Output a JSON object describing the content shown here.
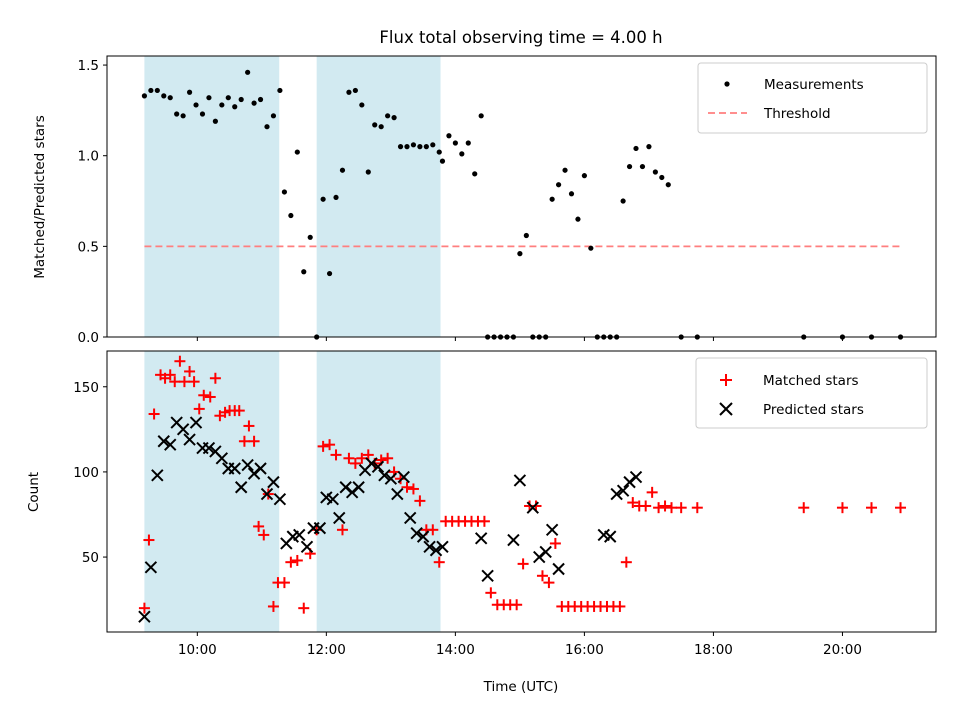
{
  "chart_data": {
    "type": "scatter",
    "title": "Flux total observing time = 4.00 h",
    "xlabel": "Time (UTC)",
    "x_unit": "hours UTC",
    "xlim": [
      8.6,
      21.45
    ],
    "xticks": [
      10,
      12,
      14,
      16,
      18,
      20
    ],
    "xtick_labels": [
      "10:00",
      "12:00",
      "14:00",
      "16:00",
      "18:00",
      "20:00"
    ],
    "shaded_windows": [
      [
        9.18,
        11.27
      ],
      [
        11.85,
        13.77
      ]
    ],
    "shade_color": "#add8e6",
    "panels": [
      {
        "id": "ratio",
        "ylabel": "Matched/Predicted stars",
        "ylim": [
          0,
          1.55
        ],
        "yticks": [
          0.0,
          0.5,
          1.0,
          1.5
        ],
        "ytick_labels": [
          "0.0",
          "0.5",
          "1.0",
          "1.5"
        ],
        "legend_position": "upper right",
        "threshold": {
          "name": "Threshold",
          "value": 0.5,
          "x_range": [
            9.18,
            20.9
          ],
          "color": "#ff7f7f"
        },
        "series": [
          {
            "name": "Measurements",
            "marker": "dot",
            "color": "#000000",
            "x": [
              9.18,
              9.28,
              9.38,
              9.48,
              9.58,
              9.68,
              9.78,
              9.88,
              9.98,
              10.08,
              10.18,
              10.28,
              10.38,
              10.48,
              10.58,
              10.68,
              10.78,
              10.88,
              10.98,
              11.08,
              11.18,
              11.28,
              11.35,
              11.45,
              11.55,
              11.65,
              11.75,
              11.85,
              11.95,
              12.05,
              12.15,
              12.25,
              12.35,
              12.45,
              12.55,
              12.65,
              12.75,
              12.85,
              12.95,
              13.05,
              13.15,
              13.25,
              13.35,
              13.45,
              13.55,
              13.65,
              13.75,
              13.8,
              13.9,
              14.0,
              14.1,
              14.2,
              14.3,
              14.4,
              14.5,
              14.6,
              14.7,
              14.8,
              14.9,
              15.0,
              15.1,
              15.2,
              15.3,
              15.4,
              15.5,
              15.6,
              15.7,
              15.8,
              15.9,
              16.0,
              16.1,
              16.2,
              16.3,
              16.4,
              16.5,
              16.6,
              16.7,
              16.8,
              16.9,
              17.0,
              17.1,
              17.2,
              17.3,
              17.5,
              17.75,
              19.4,
              20.0,
              20.45,
              20.9
            ],
            "y": [
              1.33,
              1.36,
              1.36,
              1.33,
              1.32,
              1.23,
              1.22,
              1.35,
              1.28,
              1.23,
              1.32,
              1.19,
              1.28,
              1.32,
              1.27,
              1.31,
              1.46,
              1.29,
              1.31,
              1.16,
              1.22,
              1.36,
              0.8,
              0.67,
              1.02,
              0.36,
              0.55,
              0.0,
              0.76,
              0.35,
              0.77,
              0.92,
              1.35,
              1.36,
              1.28,
              0.91,
              1.17,
              1.16,
              1.22,
              1.21,
              1.05,
              1.05,
              1.06,
              1.05,
              1.05,
              1.06,
              1.02,
              0.97,
              1.11,
              1.07,
              1.01,
              1.07,
              0.9,
              1.22,
              0.0,
              0.0,
              0.0,
              0.0,
              0.0,
              0.46,
              0.56,
              0.0,
              0.0,
              0.0,
              0.76,
              0.84,
              0.92,
              0.79,
              0.65,
              0.89,
              0.49,
              0.0,
              0.0,
              0.0,
              0.0,
              0.75,
              0.94,
              1.04,
              0.94,
              1.05,
              0.91,
              0.88,
              0.84,
              0.0,
              0.0,
              0.0,
              0.0,
              0.0,
              0.0
            ]
          }
        ]
      },
      {
        "id": "counts",
        "ylabel": "Count",
        "ylim": [
          6,
          171
        ],
        "yticks": [
          50,
          100,
          150
        ],
        "ytick_labels": [
          "50",
          "100",
          "150"
        ],
        "legend_position": "upper right",
        "series": [
          {
            "name": "Matched stars",
            "marker": "plus",
            "color": "#ff0000",
            "x": [
              9.18,
              9.25,
              9.33,
              9.43,
              9.5,
              9.58,
              9.65,
              9.73,
              9.8,
              9.88,
              9.95,
              10.03,
              10.1,
              10.2,
              10.28,
              10.35,
              10.43,
              10.5,
              10.58,
              10.65,
              10.73,
              10.8,
              10.88,
              10.95,
              11.03,
              11.1,
              11.18,
              11.25,
              11.35,
              11.45,
              11.55,
              11.65,
              11.75,
              11.85,
              11.95,
              12.05,
              12.15,
              12.25,
              12.35,
              12.45,
              12.55,
              12.65,
              12.75,
              12.85,
              12.95,
              13.05,
              13.15,
              13.25,
              13.35,
              13.45,
              13.55,
              13.65,
              13.75,
              13.85,
              13.95,
              14.05,
              14.15,
              14.25,
              14.35,
              14.45,
              14.55,
              14.65,
              14.75,
              14.85,
              14.95,
              15.05,
              15.15,
              15.25,
              15.35,
              15.45,
              15.55,
              15.65,
              15.75,
              15.85,
              15.95,
              16.05,
              16.15,
              16.25,
              16.35,
              16.45,
              16.55,
              16.65,
              16.75,
              16.85,
              16.95,
              17.05,
              17.15,
              17.25,
              17.35,
              17.5,
              17.75,
              19.4,
              20.0,
              20.45,
              20.9
            ],
            "y": [
              20,
              60,
              134,
              157,
              155,
              157,
              153,
              165,
              153,
              159,
              153,
              137,
              145,
              144,
              155,
              133,
              135,
              136,
              136,
              136,
              118,
              127,
              118,
              68,
              63,
              87,
              21,
              35,
              35,
              47,
              48,
              20,
              52,
              66,
              115,
              116,
              110,
              66,
              108,
              105,
              108,
              110,
              105,
              107,
              108,
              100,
              96,
              91,
              90,
              83,
              66,
              66,
              47,
              71,
              71,
              71,
              71,
              71,
              71,
              71,
              29,
              22,
              22,
              22,
              22,
              46,
              80,
              80,
              39,
              35,
              58,
              21,
              21,
              21,
              21,
              21,
              21,
              21,
              21,
              21,
              21,
              47,
              82,
              80,
              80,
              88,
              79,
              80,
              79,
              79,
              79,
              79,
              79,
              79,
              79
            ]
          },
          {
            "name": "Predicted stars",
            "marker": "x",
            "color": "#000000",
            "x": [
              9.18,
              9.28,
              9.38,
              9.48,
              9.58,
              9.68,
              9.78,
              9.88,
              9.98,
              10.08,
              10.18,
              10.28,
              10.38,
              10.48,
              10.58,
              10.68,
              10.78,
              10.88,
              10.98,
              11.08,
              11.18,
              11.28,
              11.38,
              11.48,
              11.58,
              11.7,
              11.8,
              11.9,
              12.0,
              12.1,
              12.2,
              12.3,
              12.4,
              12.5,
              12.6,
              12.7,
              12.8,
              12.9,
              13.0,
              13.1,
              13.2,
              13.3,
              13.4,
              13.5,
              13.6,
              13.7,
              13.8,
              14.4,
              14.5,
              14.9,
              15.0,
              15.2,
              15.3,
              15.4,
              15.5,
              15.6,
              16.3,
              16.4,
              16.5,
              16.6,
              16.7,
              16.8
            ],
            "y": [
              15,
              44,
              98,
              118,
              116,
              129,
              125,
              119,
              129,
              114,
              114,
              112,
              108,
              102,
              102,
              91,
              104,
              99,
              102,
              87,
              94,
              84,
              58,
              62,
              63,
              56,
              67,
              67,
              85,
              84,
              73,
              91,
              88,
              91,
              101,
              105,
              103,
              98,
              96,
              87,
              97,
              73,
              64,
              62,
              56,
              54,
              56,
              61,
              39,
              60,
              95,
              79,
              50,
              53,
              66,
              43,
              63,
              62,
              87,
              89,
              94,
              97
            ]
          }
        ]
      }
    ]
  }
}
